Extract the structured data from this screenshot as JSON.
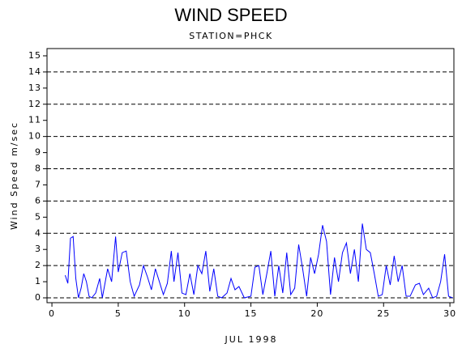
{
  "chart_data": {
    "type": "line",
    "title": "WIND SPEED",
    "subtitle": "STATION=PHCK",
    "x_label": "JUL 1998",
    "y_label": "Wind Speed m/sec",
    "xlim": [
      -0.37,
      30.3
    ],
    "xticks": [
      0,
      5,
      10,
      15,
      20,
      25,
      30
    ],
    "ylim": [
      -0.3,
      15.45
    ],
    "yticks": [
      0,
      1,
      2,
      3,
      4,
      5,
      6,
      7,
      8,
      9,
      10,
      11,
      12,
      13,
      14,
      15
    ],
    "grid": true,
    "grid_every": 2,
    "series": [
      {
        "color": "#0000ff",
        "x": [
          1.0,
          1.2,
          1.4,
          1.6,
          1.8,
          2.0,
          2.2,
          2.4,
          2.6,
          2.8,
          3.0,
          3.3,
          3.6,
          3.8,
          4.2,
          4.5,
          4.8,
          5.0,
          5.3,
          5.6,
          5.9,
          6.2,
          6.6,
          6.9,
          7.2,
          7.5,
          7.8,
          8.1,
          8.4,
          8.7,
          9.0,
          9.2,
          9.5,
          9.8,
          10.1,
          10.4,
          10.7,
          11.0,
          11.3,
          11.6,
          11.9,
          12.2,
          12.5,
          12.8,
          13.2,
          13.5,
          13.8,
          14.1,
          14.5,
          15.0,
          15.3,
          15.6,
          15.9,
          16.2,
          16.5,
          16.8,
          17.1,
          17.4,
          17.7,
          18.0,
          18.3,
          18.6,
          18.9,
          19.2,
          19.5,
          19.8,
          20.1,
          20.4,
          20.7,
          21.0,
          21.3,
          21.6,
          21.9,
          22.2,
          22.5,
          22.8,
          23.1,
          23.4,
          23.7,
          24.0,
          24.3,
          24.6,
          24.9,
          25.2,
          25.5,
          25.8,
          26.1,
          26.4,
          26.7,
          27.0,
          27.4,
          27.7,
          28.0,
          28.4,
          28.7,
          29.0,
          29.3,
          29.6,
          29.9,
          30.2
        ],
        "values": [
          1.4,
          0.9,
          3.7,
          3.8,
          1.2,
          0,
          0.6,
          1.5,
          1.0,
          0.1,
          0,
          0.3,
          1.2,
          0,
          1.8,
          1.0,
          3.8,
          1.6,
          2.8,
          2.9,
          1.0,
          0.1,
          0.8,
          2.0,
          1.3,
          0.5,
          1.8,
          1.0,
          0.2,
          0.9,
          2.9,
          1.0,
          2.8,
          0.3,
          0.2,
          1.5,
          0.2,
          2.0,
          1.5,
          2.9,
          0.4,
          1.8,
          0.1,
          0,
          0.3,
          1.2,
          0.5,
          0.7,
          0,
          0.1,
          1.9,
          2.0,
          0.2,
          1.5,
          2.9,
          0.1,
          2.0,
          0.3,
          2.8,
          0.2,
          0.6,
          3.3,
          1.8,
          0.1,
          2.5,
          1.5,
          2.7,
          4.5,
          3.5,
          0.2,
          2.5,
          1.0,
          2.8,
          3.4,
          1.5,
          3.0,
          1.0,
          4.6,
          3.0,
          2.8,
          1.5,
          0.1,
          0.2,
          2.0,
          0.8,
          2.6,
          1.0,
          2.0,
          0.1,
          0.1,
          0.8,
          0.9,
          0.2,
          0.6,
          0,
          0.1,
          1.0,
          2.7,
          0.1,
          0
        ]
      }
    ]
  }
}
